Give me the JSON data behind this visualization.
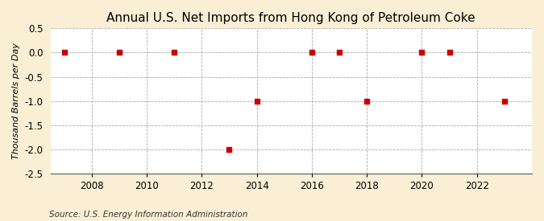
{
  "title": "Annual U.S. Net Imports from Hong Kong of Petroleum Coke",
  "ylabel": "Thousand Barrels per Day",
  "source": "Source: U.S. Energy Information Administration",
  "fig_background_color": "#faefd4",
  "plot_background_color": "#ffffff",
  "x_values": [
    2007,
    2009,
    2011,
    2013,
    2014,
    2016,
    2017,
    2018,
    2020,
    2021,
    2023
  ],
  "y_values": [
    0,
    0,
    0,
    -2,
    -1,
    0,
    0,
    -1,
    0,
    0,
    -1
  ],
  "xlim": [
    2006.5,
    2024.0
  ],
  "ylim": [
    -2.5,
    0.5
  ],
  "yticks": [
    0.5,
    0.0,
    -0.5,
    -1.0,
    -1.5,
    -2.0,
    -2.5
  ],
  "xticks": [
    2008,
    2010,
    2012,
    2014,
    2016,
    2018,
    2020,
    2022
  ],
  "marker_color": "#cc0000",
  "marker_size": 20,
  "title_fontsize": 11,
  "label_fontsize": 8,
  "tick_fontsize": 8.5,
  "source_fontsize": 7.5
}
